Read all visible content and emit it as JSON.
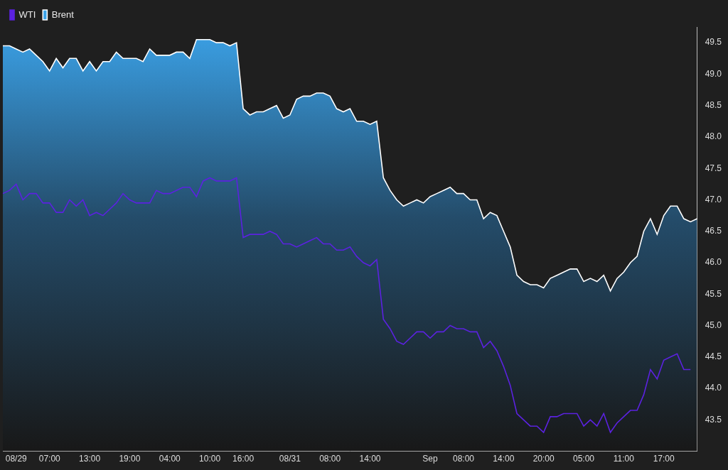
{
  "chart_data": {
    "type": "line",
    "categories": [
      null,
      null,
      "08/29",
      null,
      null,
      null,
      null,
      "07:00",
      null,
      null,
      null,
      null,
      null,
      "13:00",
      null,
      null,
      null,
      null,
      null,
      "19:00",
      null,
      null,
      null,
      null,
      null,
      "04:00",
      null,
      null,
      null,
      null,
      null,
      "10:00",
      null,
      null,
      null,
      null,
      "16:00",
      null,
      null,
      null,
      null,
      null,
      null,
      "08/31",
      null,
      null,
      null,
      null,
      null,
      "08:00",
      null,
      null,
      null,
      null,
      null,
      "14:00",
      null,
      null,
      null,
      null,
      null,
      null,
      null,
      null,
      "Sep",
      null,
      null,
      null,
      null,
      "08:00",
      null,
      null,
      null,
      null,
      null,
      "14:00",
      null,
      null,
      null,
      null,
      null,
      "20:00",
      null,
      null,
      null,
      null,
      null,
      "05:00",
      null,
      null,
      null,
      null,
      null,
      "11:00",
      null,
      null,
      null,
      null,
      null,
      "17:00",
      null,
      null,
      null,
      null,
      null
    ],
    "series": [
      {
        "name": "Brent",
        "color": "#ffffff",
        "type": "area",
        "values": [
          49.45,
          49.45,
          49.4,
          49.35,
          49.4,
          49.3,
          49.2,
          49.05,
          49.25,
          49.1,
          49.25,
          49.25,
          49.05,
          49.2,
          49.05,
          49.2,
          49.2,
          49.35,
          49.25,
          49.25,
          49.25,
          49.2,
          49.4,
          49.3,
          49.3,
          49.3,
          49.35,
          49.35,
          49.25,
          49.55,
          49.55,
          49.55,
          49.5,
          49.5,
          49.45,
          49.5,
          48.45,
          48.35,
          48.4,
          48.4,
          48.45,
          48.5,
          48.3,
          48.35,
          48.6,
          48.65,
          48.65,
          48.7,
          48.7,
          48.65,
          48.45,
          48.4,
          48.45,
          48.25,
          48.25,
          48.2,
          48.25,
          47.35,
          47.15,
          47.0,
          46.9,
          46.95,
          47.0,
          46.95,
          47.05,
          47.1,
          47.15,
          47.2,
          47.1,
          47.1,
          47.0,
          47.0,
          46.7,
          46.8,
          46.75,
          46.5,
          46.25,
          45.8,
          45.7,
          45.65,
          45.65,
          45.6,
          45.75,
          45.8,
          45.85,
          45.9,
          45.9,
          45.7,
          45.75,
          45.7,
          45.8,
          45.55,
          45.75,
          45.85,
          46.0,
          46.1,
          46.5,
          46.7,
          46.45,
          46.75,
          46.9,
          46.9,
          46.7,
          46.65,
          46.7
        ]
      },
      {
        "name": "WTI",
        "color": "#5b22e0",
        "type": "line",
        "values": [
          47.1,
          47.15,
          47.25,
          47.0,
          47.1,
          47.1,
          46.95,
          46.95,
          46.8,
          46.8,
          47.0,
          46.9,
          47.0,
          46.75,
          46.8,
          46.75,
          46.85,
          46.95,
          47.1,
          47.0,
          46.95,
          46.95,
          46.95,
          47.15,
          47.1,
          47.1,
          47.15,
          47.2,
          47.2,
          47.05,
          47.3,
          47.35,
          47.3,
          47.3,
          47.3,
          47.35,
          46.4,
          46.45,
          46.45,
          46.45,
          46.5,
          46.45,
          46.3,
          46.3,
          46.25,
          46.3,
          46.35,
          46.4,
          46.3,
          46.3,
          46.2,
          46.2,
          46.25,
          46.1,
          46.0,
          45.95,
          46.05,
          45.1,
          44.95,
          44.75,
          44.7,
          44.8,
          44.9,
          44.9,
          44.8,
          44.9,
          44.9,
          45.0,
          44.95,
          44.95,
          44.9,
          44.9,
          44.65,
          44.75,
          44.6,
          44.35,
          44.05,
          43.6,
          43.5,
          43.4,
          43.4,
          43.3,
          43.55,
          43.55,
          43.6,
          43.6,
          43.6,
          43.4,
          43.5,
          43.4,
          43.6,
          43.3,
          43.45,
          43.55,
          43.65,
          43.65,
          43.9,
          44.3,
          44.15,
          44.45,
          44.5,
          44.55,
          44.3,
          44.3,
          null
        ]
      }
    ],
    "ylim": [
      43.0,
      49.75
    ],
    "yticks": [
      43.5,
      {
        "value": 44,
        "label": "44.0"
      },
      44.5,
      {
        "value": 45,
        "label": "45.0"
      },
      45.5,
      {
        "value": 46,
        "label": "46.0"
      },
      46.5,
      {
        "value": 47,
        "label": "47.0"
      },
      47.5,
      {
        "value": 48,
        "label": "48.0"
      },
      48.5,
      {
        "value": 49,
        "label": "49.0"
      },
      49.5
    ],
    "grid": false,
    "legend": "top-left"
  }
}
